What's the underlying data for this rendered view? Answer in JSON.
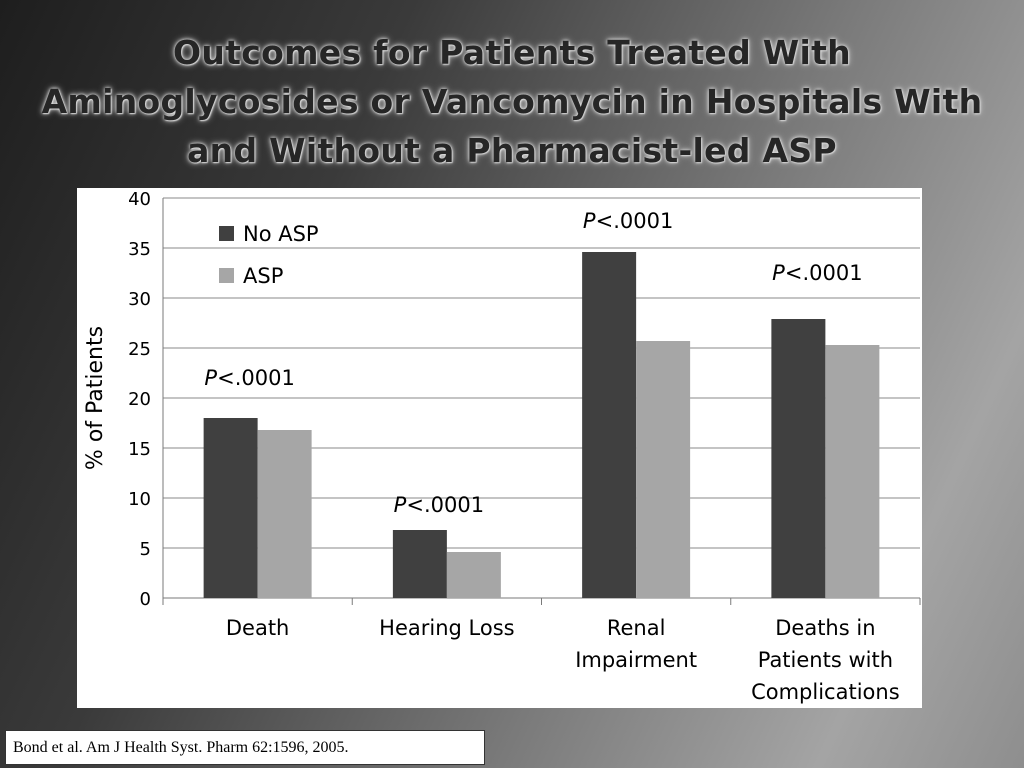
{
  "slide": {
    "title_lines": [
      "Outcomes for Patients Treated With",
      "Aminoglycosides or Vancomycin in Hospitals With",
      "and Without a Pharmacist-led ASP"
    ],
    "citation": "Bond et al. Am J Health Syst. Pharm 62:1596, 2005."
  },
  "chart_data": {
    "type": "bar",
    "title": "",
    "xlabel": "",
    "ylabel": "% of Patients",
    "ylim": [
      0,
      40
    ],
    "yticks": [
      0,
      5,
      10,
      15,
      20,
      25,
      30,
      35,
      40
    ],
    "grid": true,
    "legend_position": "top-left",
    "categories": [
      [
        "Death"
      ],
      [
        "Hearing Loss"
      ],
      [
        "Renal",
        "Impairment"
      ],
      [
        "Deaths in",
        "Patients with",
        "Complications"
      ]
    ],
    "series": [
      {
        "name": "No ASP",
        "color": "#404040",
        "values": [
          18,
          6.8,
          34.6,
          27.9
        ]
      },
      {
        "name": "ASP",
        "color": "#a6a6a6",
        "values": [
          16.8,
          4.6,
          25.7,
          25.3
        ]
      }
    ],
    "annotations": [
      {
        "category_index": 0,
        "y": 21.3,
        "prefix": "P",
        "text": "<.0001"
      },
      {
        "category_index": 1,
        "y": 8.6,
        "prefix": "P",
        "text": "<.0001"
      },
      {
        "category_index": 2,
        "y": 37.0,
        "prefix": "P",
        "text": "<.0001"
      },
      {
        "category_index": 3,
        "y": 31.8,
        "prefix": "P",
        "text": "<.0001"
      }
    ]
  }
}
